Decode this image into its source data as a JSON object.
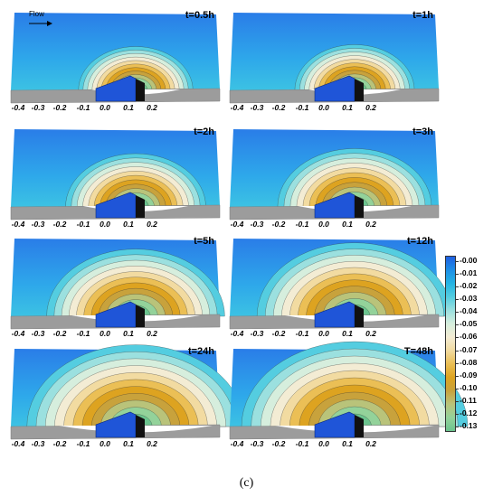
{
  "flow_label": "Flow",
  "panels": [
    {
      "label": "t=0.5h",
      "time": "0.5h",
      "scour_extent": 0.35
    },
    {
      "label": "t=1h",
      "time": "1h",
      "scour_extent": 0.38
    },
    {
      "label": "t=2h",
      "time": "2h",
      "scour_extent": 0.5
    },
    {
      "label": "t=3h",
      "time": "3h",
      "scour_extent": 0.58
    },
    {
      "label": "t=5h",
      "time": "5h",
      "scour_extent": 0.72
    },
    {
      "label": "t=12h",
      "time": "12h",
      "scour_extent": 0.82
    },
    {
      "label": "t=24h",
      "time": "24h",
      "scour_extent": 0.95
    },
    {
      "label": "T=48h",
      "time": "48h",
      "scour_extent": 1.0
    }
  ],
  "x_ticks": [
    "-0.4",
    "-0.3",
    "-0.2",
    "-0.1",
    "0.0",
    "0.1",
    "0.2"
  ],
  "colorbar": {
    "ticks": [
      "-0.00",
      "-0.01",
      "-0.02",
      "-0.03",
      "-0.04",
      "-0.05",
      "-0.06",
      "-0.07",
      "-0.08",
      "-0.09",
      "-0.10",
      "-0.11",
      "-0.12",
      "-0.13"
    ],
    "colors": [
      "#1f5fe0",
      "#1e8fe6",
      "#25b4e3",
      "#54cde0",
      "#9be0df",
      "#d6eedd",
      "#f3ecd4",
      "#f2dba1",
      "#ebbf55",
      "#dda320",
      "#c8a23c",
      "#b9c37a",
      "#93d29a",
      "#6bc48e"
    ]
  },
  "caption": "(c)"
}
